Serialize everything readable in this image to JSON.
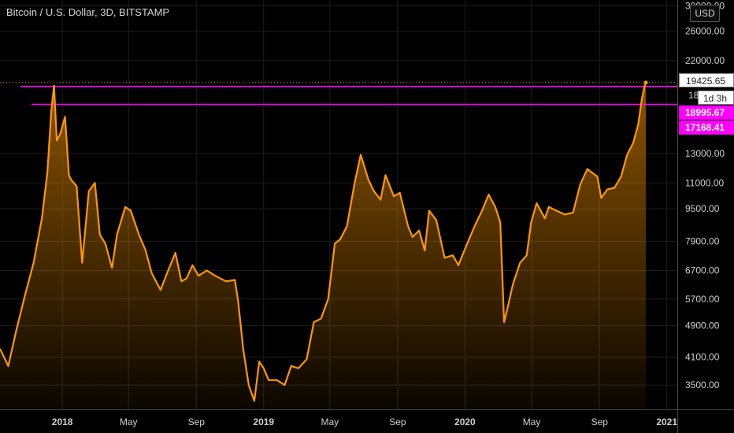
{
  "header": {
    "title": "Bitcoin / U.S. Dollar, 3D, BITSTAMP",
    "currency_button": "USD"
  },
  "price_labels": {
    "last": "19425.65",
    "countdown": "1d 3h",
    "partial_tick": "18",
    "hline_upper": "18995.67",
    "hline_lower": "17168.41"
  },
  "colors": {
    "line": "#ff9800",
    "hline": "#ff00ff",
    "background": "#000000",
    "grid": "#1e1e1e"
  },
  "chart_data": {
    "type": "area",
    "y_scale": "log",
    "ylim": [
      3050,
      31000
    ],
    "x_range": [
      "2017-09-10",
      "2021-01-20"
    ],
    "grid": true,
    "y_ticks": [
      "30000.00",
      "26000.00",
      "22000.00",
      "13000.00",
      "11000.00",
      "9500.00",
      "7900.00",
      "6700.00",
      "5700.00",
      "4900.00",
      "4100.00",
      "3500.00"
    ],
    "x_ticks": [
      {
        "label": "2018",
        "date": "2018-01-01",
        "bold": true
      },
      {
        "label": "May",
        "date": "2018-05-01",
        "bold": false
      },
      {
        "label": "Sep",
        "date": "2018-09-01",
        "bold": false
      },
      {
        "label": "2019",
        "date": "2019-01-01",
        "bold": true
      },
      {
        "label": "May",
        "date": "2019-05-01",
        "bold": false
      },
      {
        "label": "Sep",
        "date": "2019-09-01",
        "bold": false
      },
      {
        "label": "2020",
        "date": "2020-01-01",
        "bold": true
      },
      {
        "label": "May",
        "date": "2020-05-01",
        "bold": false
      },
      {
        "label": "Sep",
        "date": "2020-09-01",
        "bold": false
      },
      {
        "label": "2021",
        "date": "2021-01-01",
        "bold": true
      }
    ],
    "horizontal_lines": [
      18995.67,
      17168.41
    ],
    "last_price": 19425.65,
    "series": [
      {
        "x": [
          "2017-09-10",
          "2017-09-25",
          "2017-10-10",
          "2017-10-25",
          "2017-11-10",
          "2017-11-25",
          "2017-12-05",
          "2017-12-12",
          "2017-12-17",
          "2017-12-22",
          "2017-12-28",
          "2018-01-06",
          "2018-01-13",
          "2018-01-17",
          "2018-01-27",
          "2018-02-06",
          "2018-02-18",
          "2018-03-01",
          "2018-03-10",
          "2018-03-20",
          "2018-04-01",
          "2018-04-10",
          "2018-04-25",
          "2018-05-05",
          "2018-05-20",
          "2018-06-01",
          "2018-06-12",
          "2018-06-28",
          "2018-07-10",
          "2018-07-25",
          "2018-08-05",
          "2018-08-14",
          "2018-08-25",
          "2018-09-05",
          "2018-09-20",
          "2018-10-05",
          "2018-10-25",
          "2018-11-10",
          "2018-11-16",
          "2018-11-25",
          "2018-12-05",
          "2018-12-15",
          "2018-12-24",
          "2019-01-01",
          "2019-01-10",
          "2019-01-25",
          "2019-02-08",
          "2019-02-20",
          "2019-03-05",
          "2019-03-20",
          "2019-04-02",
          "2019-04-15",
          "2019-04-28",
          "2019-05-10",
          "2019-05-20",
          "2019-06-01",
          "2019-06-15",
          "2019-06-26",
          "2019-07-10",
          "2019-07-20",
          "2019-08-01",
          "2019-08-10",
          "2019-08-25",
          "2019-09-05",
          "2019-09-20",
          "2019-09-28",
          "2019-10-10",
          "2019-10-20",
          "2019-10-28",
          "2019-11-10",
          "2019-11-25",
          "2019-12-10",
          "2019-12-20",
          "2020-01-05",
          "2020-01-20",
          "2020-02-01",
          "2020-02-13",
          "2020-02-25",
          "2020-03-05",
          "2020-03-12",
          "2020-03-18",
          "2020-03-28",
          "2020-04-10",
          "2020-04-22",
          "2020-04-30",
          "2020-05-10",
          "2020-05-25",
          "2020-06-01",
          "2020-06-15",
          "2020-06-30",
          "2020-07-15",
          "2020-07-28",
          "2020-08-10",
          "2020-08-17",
          "2020-08-28",
          "2020-09-04",
          "2020-09-15",
          "2020-09-28",
          "2020-10-10",
          "2020-10-21",
          "2020-11-01",
          "2020-11-10",
          "2020-11-17",
          "2020-11-22",
          "2020-11-24"
        ],
        "values": [
          4300,
          3900,
          4800,
          5800,
          7000,
          9000,
          11700,
          16500,
          19100,
          14000,
          14500,
          16000,
          11500,
          11200,
          10800,
          7000,
          10500,
          11000,
          8200,
          7800,
          6800,
          8200,
          9600,
          9400,
          8200,
          7500,
          6600,
          6000,
          6600,
          7400,
          6300,
          6400,
          6900,
          6500,
          6700,
          6500,
          6300,
          6350,
          5600,
          4300,
          3500,
          3200,
          4000,
          3850,
          3600,
          3600,
          3500,
          3900,
          3850,
          4050,
          5000,
          5100,
          5700,
          7800,
          8000,
          8600,
          11000,
          12900,
          11200,
          10500,
          10000,
          11500,
          10200,
          10400,
          8600,
          8100,
          8400,
          7500,
          9400,
          8900,
          7200,
          7300,
          6900,
          7800,
          8700,
          9400,
          10300,
          9600,
          8800,
          5000,
          5400,
          6200,
          7000,
          7300,
          8800,
          9800,
          9000,
          9600,
          9400,
          9200,
          9300,
          10900,
          11900,
          11700,
          11400,
          10100,
          10600,
          10700,
          11400,
          12900,
          13800,
          15300,
          17800,
          19100,
          19425.65
        ]
      }
    ]
  }
}
